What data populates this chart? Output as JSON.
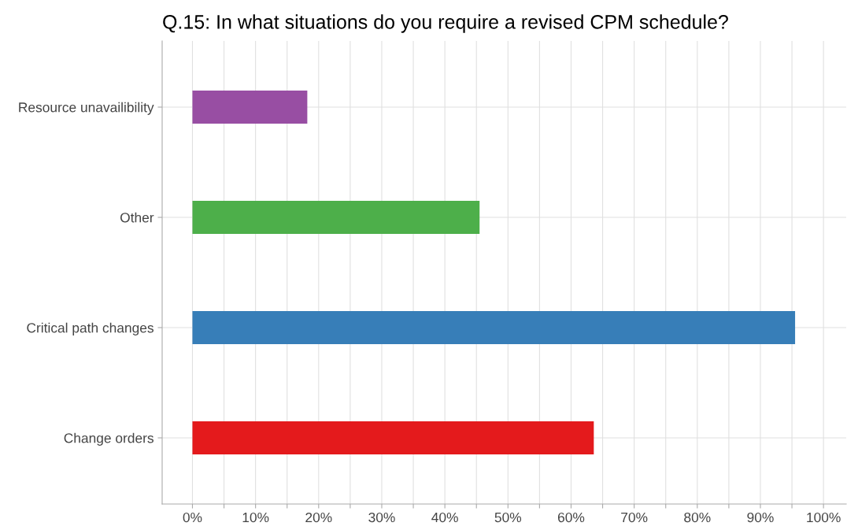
{
  "chart_data": {
    "type": "bar",
    "orientation": "horizontal",
    "title": "Q.15: In what situations do you require a revised CPM schedule?",
    "categories": [
      "Resource unavailibility",
      "Other",
      "Critical path changes",
      "Change orders"
    ],
    "values": [
      18.2,
      45.5,
      95.5,
      63.6
    ],
    "colors": [
      "#984ea3",
      "#4daf4a",
      "#377eb8",
      "#e41a1c"
    ],
    "xlim": [
      -4.8,
      103.6
    ],
    "xticks": [
      {
        "value": 0,
        "label": "0%"
      },
      {
        "value": 5,
        "label": null
      },
      {
        "value": 10,
        "label": "10%"
      },
      {
        "value": 15,
        "label": null
      },
      {
        "value": 20,
        "label": "20%"
      },
      {
        "value": 25,
        "label": null
      },
      {
        "value": 30,
        "label": "30%"
      },
      {
        "value": 35,
        "label": null
      },
      {
        "value": 40,
        "label": "40%"
      },
      {
        "value": 45,
        "label": null
      },
      {
        "value": 50,
        "label": "50%"
      },
      {
        "value": 55,
        "label": null
      },
      {
        "value": 60,
        "label": "60%"
      },
      {
        "value": 65,
        "label": null
      },
      {
        "value": 70,
        "label": "70%"
      },
      {
        "value": 75,
        "label": null
      },
      {
        "value": 80,
        "label": "80%"
      },
      {
        "value": 85,
        "label": null
      },
      {
        "value": 90,
        "label": "90%"
      },
      {
        "value": 95,
        "label": null
      },
      {
        "value": 100,
        "label": "100%"
      }
    ],
    "grid": true,
    "legend": false
  }
}
